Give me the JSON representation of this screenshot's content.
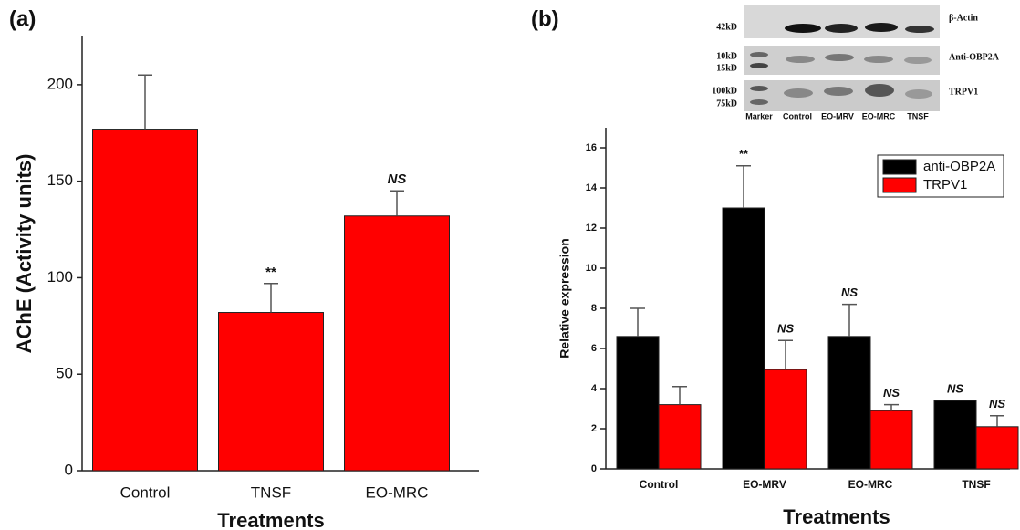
{
  "chart_data": [
    {
      "type": "bar",
      "panel": "(a)",
      "y_label": "AChE (Activity units)",
      "x_label": "Treatments",
      "categories": [
        "Control",
        "TNSF",
        "EO-MRC"
      ],
      "values": [
        177,
        82,
        132
      ],
      "errors": [
        28,
        15,
        13
      ],
      "annotations": [
        null,
        "**",
        "NS"
      ],
      "color": "#ff0000",
      "ylim": [
        0,
        225
      ],
      "yticks": [
        0,
        50,
        100,
        150,
        200
      ]
    },
    {
      "type": "grouped-bar",
      "panel": "(b)",
      "y_label": "Relative expression",
      "x_label": "Treatments",
      "categories": [
        "Control",
        "EO-MRV",
        "EO-MRC",
        "TNSF"
      ],
      "series": [
        {
          "name": "anti-OBP2A",
          "color": "#000000",
          "values": [
            6.6,
            13.0,
            6.6,
            3.4
          ],
          "errors": [
            1.4,
            2.1,
            1.6,
            null
          ],
          "annotations": [
            null,
            "**",
            "NS",
            "NS"
          ]
        },
        {
          "name": "TRPV1",
          "color": "#ff0000",
          "values": [
            3.2,
            4.95,
            2.9,
            2.1
          ],
          "errors": [
            0.9,
            1.45,
            0.3,
            0.55
          ],
          "annotations": [
            null,
            "NS",
            "NS",
            "NS"
          ]
        }
      ],
      "ylim": [
        0,
        17
      ],
      "yticks": [
        0,
        2,
        4,
        6,
        8,
        10,
        12,
        14,
        16
      ],
      "legend": "top-right"
    }
  ],
  "blot": {
    "left_labels": [
      "42kD",
      "10kD",
      "15kD",
      "100kD",
      "75kD"
    ],
    "band_labels": [
      "β-Actin",
      "Anti-OBP2A",
      "TRPV1"
    ],
    "lanes": [
      "Marker",
      "Control",
      "EO-MRV",
      "EO-MRC",
      "TNSF"
    ]
  }
}
